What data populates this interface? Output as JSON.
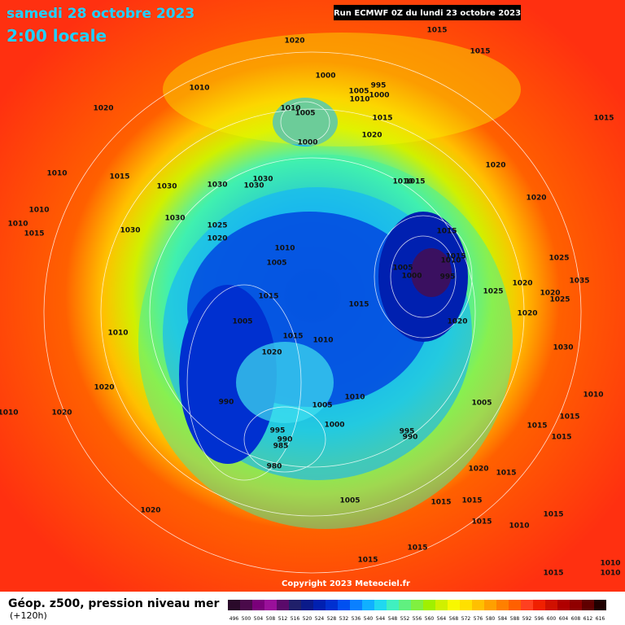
{
  "header": {
    "date": "samedi 28 octobre 2023",
    "time": "2:00 locale",
    "run": "Run ECMWF 0Z du lundi 23 octobre 2023"
  },
  "footer": {
    "copyright": "Copyright 2023 Meteociel.fr",
    "title": "Géop. z500, pression niveau mer",
    "lead": "(+120h)"
  },
  "legend": {
    "values": [
      496,
      500,
      504,
      508,
      512,
      516,
      520,
      524,
      528,
      532,
      536,
      540,
      544,
      548,
      552,
      556,
      560,
      564,
      568,
      572,
      576,
      580,
      584,
      588,
      592,
      596,
      600,
      604,
      608,
      612,
      616
    ],
    "colors": [
      "#2a0a2a",
      "#4a0a4a",
      "#7a007a",
      "#9a109a",
      "#5a0a6a",
      "#20206a",
      "#0a1a8a",
      "#0020b0",
      "#0030d0",
      "#0050f0",
      "#0a80ff",
      "#10b0ff",
      "#20d8f0",
      "#40f0c0",
      "#60f080",
      "#80f040",
      "#a0f000",
      "#d0f000",
      "#f8f800",
      "#ffe000",
      "#ffc000",
      "#ffa000",
      "#ff8000",
      "#ff6000",
      "#ff4020",
      "#f02000",
      "#d01000",
      "#b00000",
      "#900000",
      "#600000",
      "#200000"
    ]
  },
  "isobars": [
    1020,
    1015,
    1015,
    1000,
    995,
    1005,
    1000,
    1010,
    1010,
    1010,
    1005,
    1020,
    1015,
    1015,
    1020,
    1000,
    1020,
    1010,
    1015,
    1030,
    1030,
    1030,
    1030,
    1010,
    1015,
    1020,
    1010,
    1030,
    1010,
    1025,
    1015,
    1030,
    1020,
    1015,
    1010,
    1015,
    1025,
    1005,
    1010,
    995,
    1005,
    1000,
    1035,
    1020,
    1025,
    1020,
    1025,
    1015,
    1015,
    1020,
    1005,
    1020,
    1010,
    1015,
    1010,
    1030,
    1020,
    1020,
    1010,
    990,
    1005,
    1005,
    1010,
    1015,
    1010,
    1020,
    1000,
    1015,
    995,
    995,
    990,
    990,
    985,
    1015,
    980,
    1020,
    1015,
    1005,
    1015,
    1015,
    1020,
    1015,
    1015,
    1010,
    1015,
    1015,
    1010,
    1010,
    1015
  ]
}
